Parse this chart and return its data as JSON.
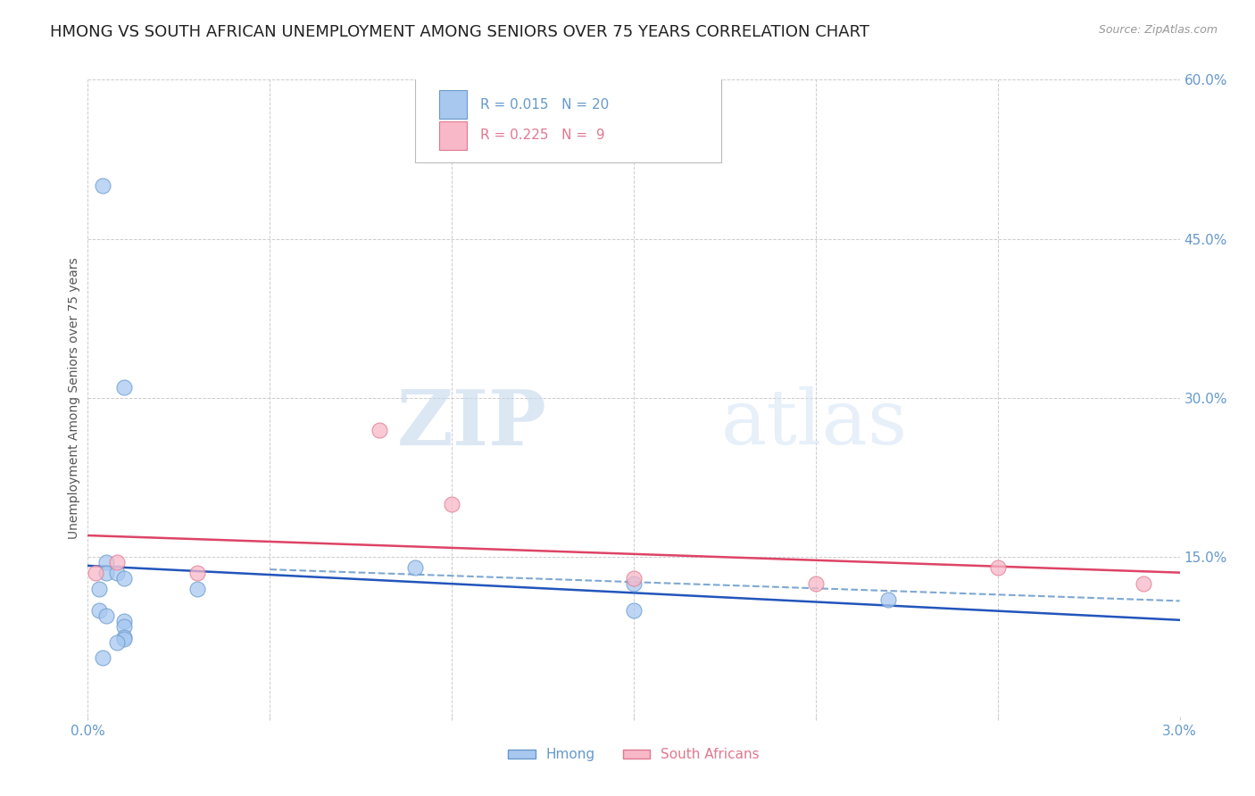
{
  "title": "HMONG VS SOUTH AFRICAN UNEMPLOYMENT AMONG SENIORS OVER 75 YEARS CORRELATION CHART",
  "source": "Source: ZipAtlas.com",
  "ylabel": "Unemployment Among Seniors over 75 years",
  "xlim": [
    0.0,
    0.03
  ],
  "ylim": [
    0.0,
    0.6
  ],
  "xticks": [
    0.0,
    0.005,
    0.01,
    0.015,
    0.02,
    0.025,
    0.03
  ],
  "xticklabels": [
    "0.0%",
    "",
    "",
    "",
    "",
    "",
    "3.0%"
  ],
  "yticks_right": [
    0.0,
    0.15,
    0.3,
    0.45,
    0.6
  ],
  "ytick_labels_right": [
    "",
    "15.0%",
    "30.0%",
    "45.0%",
    "60.0%"
  ],
  "hmong_x": [
    0.0004,
    0.001,
    0.0005,
    0.0005,
    0.0008,
    0.001,
    0.0003,
    0.0003,
    0.0005,
    0.001,
    0.001,
    0.001,
    0.001,
    0.0008,
    0.0004,
    0.003,
    0.009,
    0.015,
    0.015,
    0.022
  ],
  "hmong_y": [
    0.5,
    0.31,
    0.145,
    0.135,
    0.135,
    0.13,
    0.12,
    0.1,
    0.095,
    0.09,
    0.085,
    0.075,
    0.073,
    0.07,
    0.055,
    0.12,
    0.14,
    0.125,
    0.1,
    0.11
  ],
  "sa_x": [
    0.0002,
    0.0008,
    0.003,
    0.008,
    0.01,
    0.015,
    0.02,
    0.025,
    0.029
  ],
  "sa_y": [
    0.135,
    0.145,
    0.135,
    0.27,
    0.2,
    0.13,
    0.125,
    0.14,
    0.125
  ],
  "hmong_color": "#a8c8f0",
  "sa_color": "#f8b8c8",
  "hmong_edge": "#6699cc",
  "sa_edge": "#e07890",
  "trend_hmong_color": "#2255bb",
  "trend_sa_color": "#dd4466",
  "trend_dashed_color": "#6699cc",
  "R_hmong": 0.015,
  "N_hmong": 20,
  "R_sa": 0.225,
  "N_sa": 9,
  "marker_size": 150,
  "watermark_zip": "ZIP",
  "watermark_atlas": "atlas",
  "background_color": "#ffffff",
  "grid_color": "#cccccc",
  "tick_color": "#6699cc",
  "title_fontsize": 13,
  "axis_label_fontsize": 10,
  "tick_fontsize": 11
}
